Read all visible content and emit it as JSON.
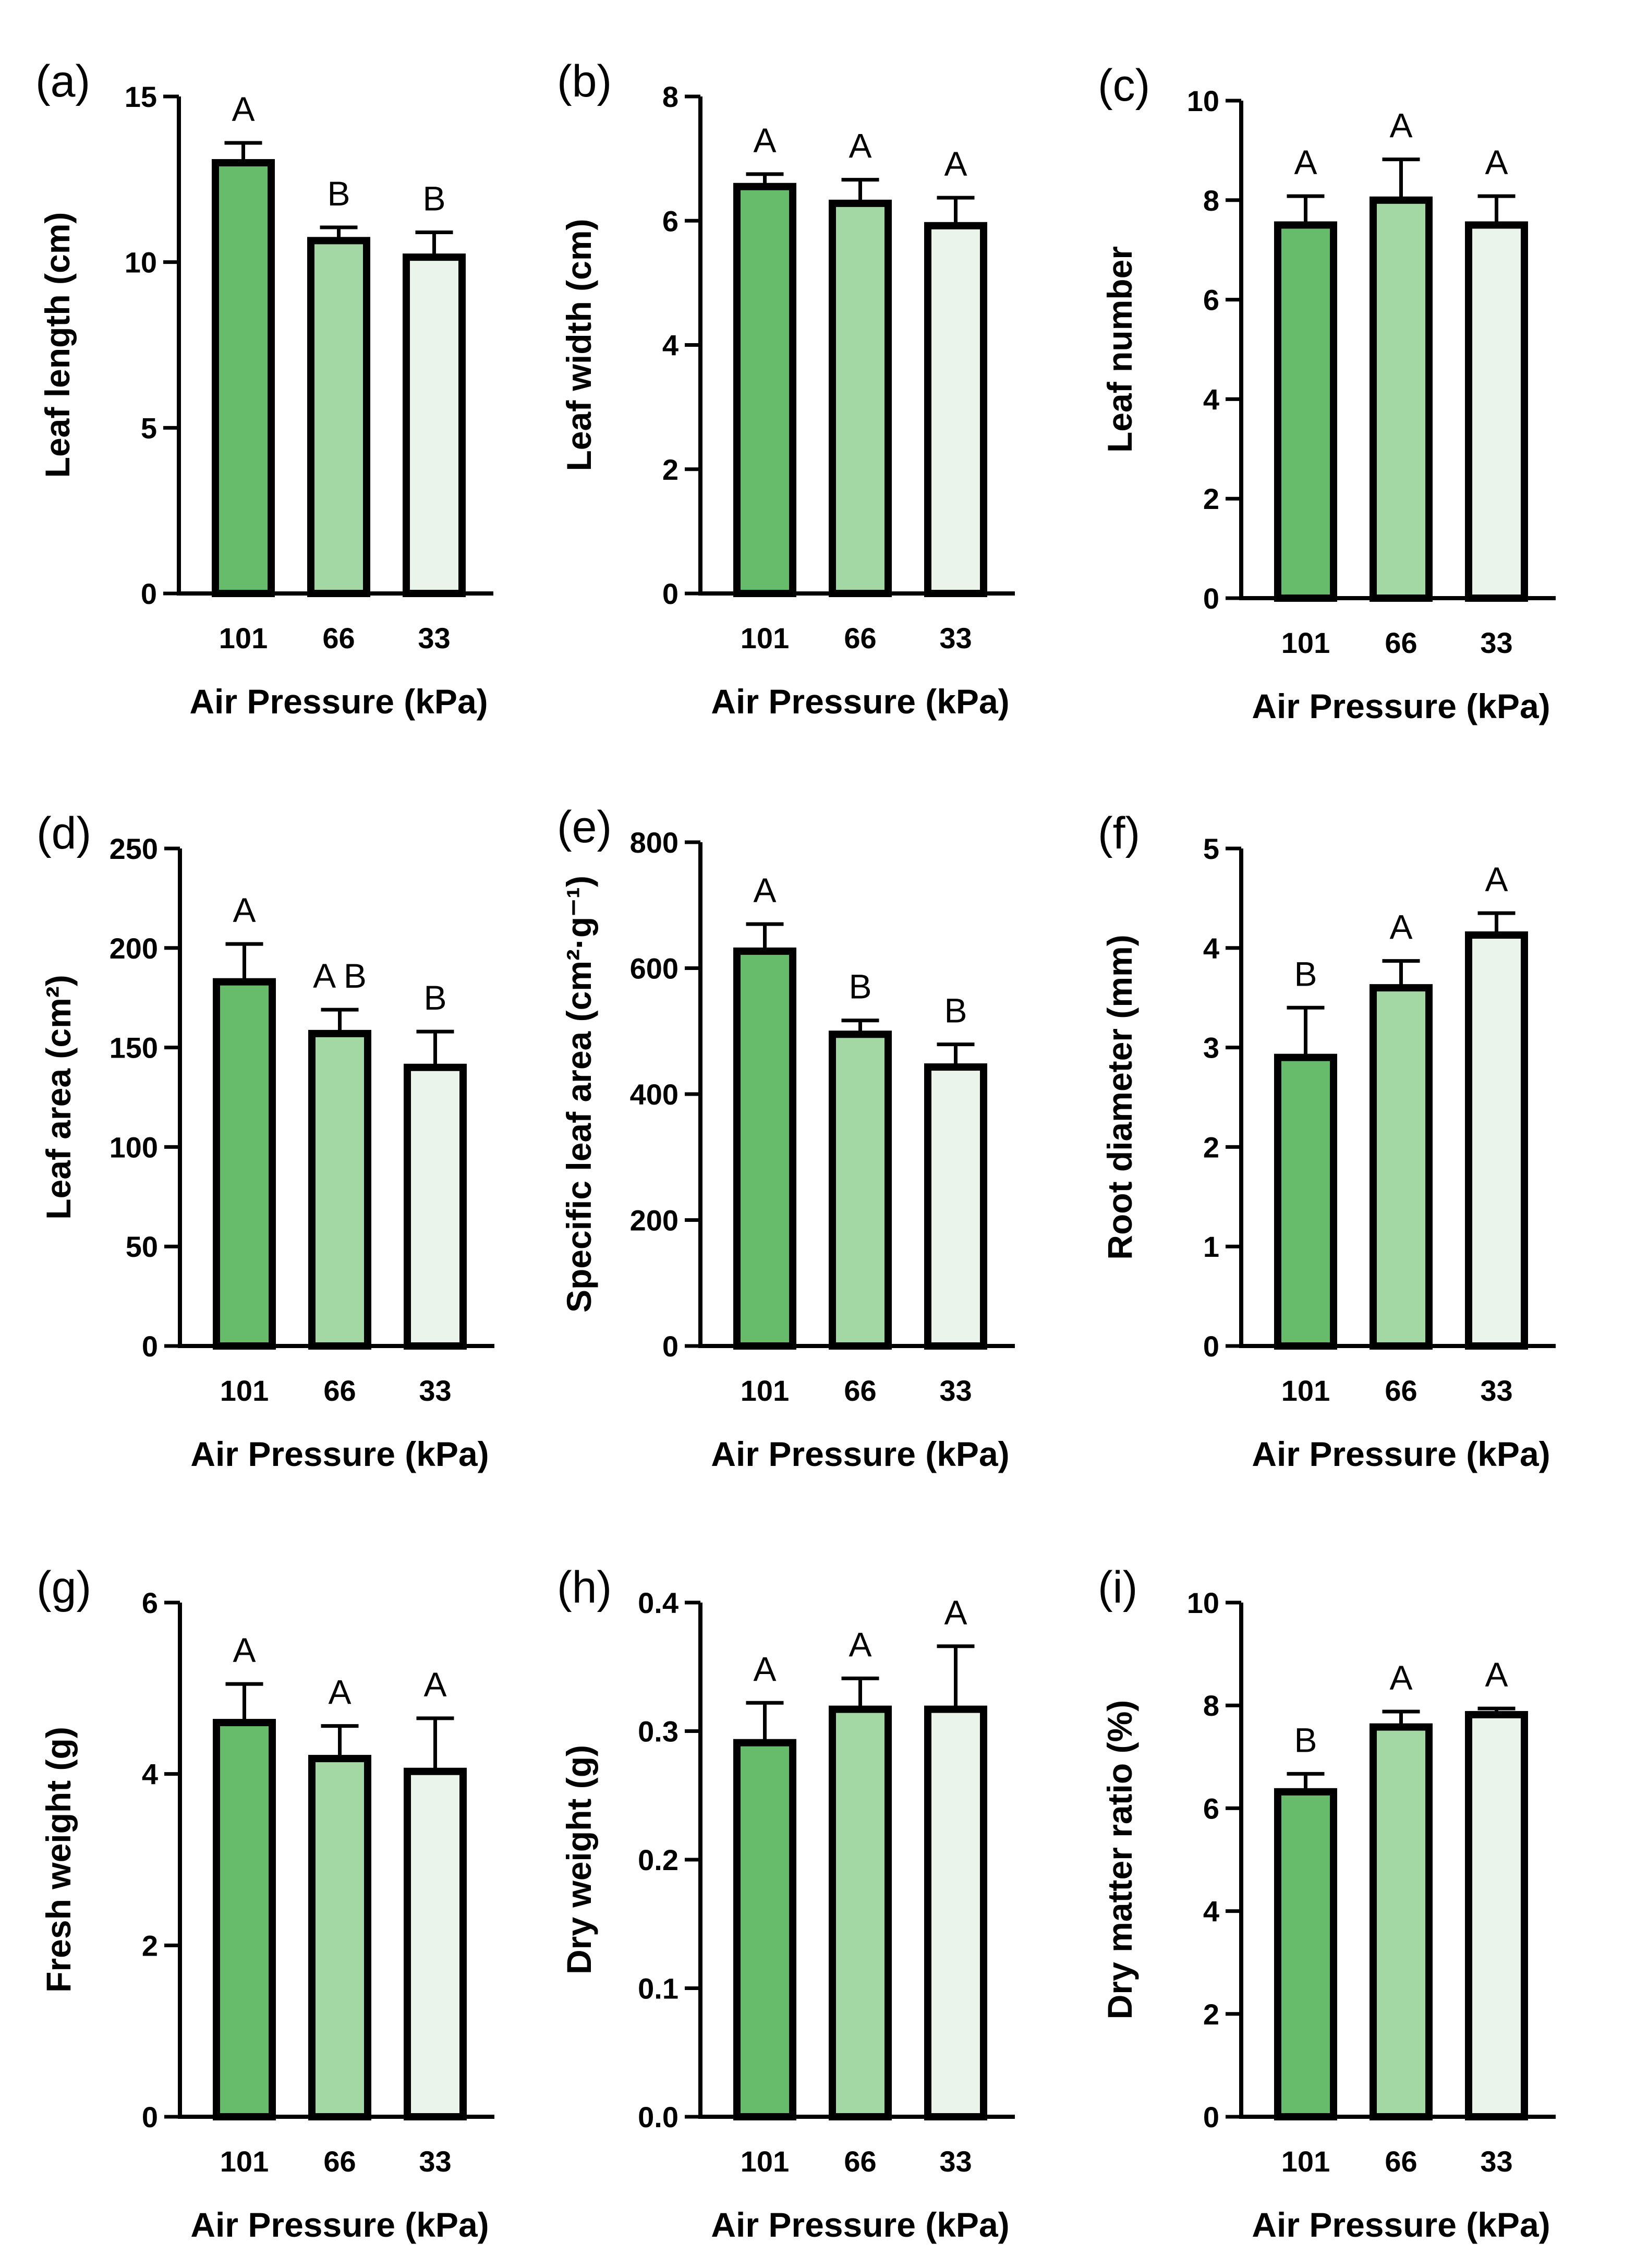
{
  "colors": {
    "bar_101": "#67bc6c",
    "bar_66": "#a3d7a3",
    "bar_33": "#eaf4ea",
    "stroke": "#000000"
  },
  "chart_data": [
    {
      "type": "bar",
      "panel": "(a)",
      "categories": [
        "101",
        "66",
        "33"
      ],
      "values": [
        13.0,
        10.65,
        10.15
      ],
      "errors": [
        0.6,
        0.4,
        0.75
      ],
      "letters": [
        "A",
        "B",
        "B"
      ],
      "xlabel": "Air Pressure (kPa)",
      "ylabel": "Leaf length (cm)",
      "ylim": [
        0,
        15
      ],
      "yticks": [
        "0",
        "5",
        "10",
        "15"
      ]
    },
    {
      "type": "bar",
      "panel": "(b)",
      "categories": [
        "101",
        "66",
        "33"
      ],
      "values": [
        6.55,
        6.28,
        5.92
      ],
      "errors": [
        0.2,
        0.38,
        0.45
      ],
      "letters": [
        "A",
        "A",
        "A"
      ],
      "xlabel": "Air Pressure (kPa)",
      "ylabel": "Leaf width (cm)",
      "ylim": [
        0,
        8
      ],
      "yticks": [
        "0",
        "2",
        "4",
        "6",
        "8"
      ]
    },
    {
      "type": "bar",
      "panel": "(c)",
      "categories": [
        "101",
        "66",
        "33"
      ],
      "values": [
        7.5,
        8.0,
        7.5
      ],
      "errors": [
        0.58,
        0.82,
        0.58
      ],
      "letters": [
        "A",
        "A",
        "A"
      ],
      "xlabel": "Air Pressure (kPa)",
      "ylabel": "Leaf number",
      "ylim": [
        0,
        10
      ],
      "yticks": [
        "0",
        "2",
        "4",
        "6",
        "8",
        "10"
      ]
    },
    {
      "type": "bar",
      "panel": "(d)",
      "categories": [
        "101",
        "66",
        "33"
      ],
      "values": [
        183,
        157,
        140
      ],
      "errors": [
        19,
        12,
        18
      ],
      "letters": [
        "A",
        "A B",
        "B"
      ],
      "xlabel": "Air Pressure (kPa)",
      "ylabel": "Leaf area (cm²)",
      "ylim": [
        0,
        250
      ],
      "yticks": [
        "0",
        "50",
        "100",
        "150",
        "200",
        "250"
      ]
    },
    {
      "type": "bar",
      "panel": "(e)",
      "categories": [
        "101",
        "66",
        "33"
      ],
      "values": [
        627,
        495,
        443
      ],
      "errors": [
        43,
        22,
        36
      ],
      "letters": [
        "A",
        "B",
        "B"
      ],
      "xlabel": "Air Pressure (kPa)",
      "ylabel": "Specific leaf area (cm²·g⁻¹)",
      "ylim": [
        0,
        800
      ],
      "yticks": [
        "0",
        "200",
        "400",
        "600",
        "800"
      ]
    },
    {
      "type": "bar",
      "panel": "(f)",
      "categories": [
        "101",
        "66",
        "33"
      ],
      "values": [
        2.9,
        3.6,
        4.13
      ],
      "errors": [
        0.5,
        0.27,
        0.22
      ],
      "letters": [
        "B",
        "A",
        "A"
      ],
      "xlabel": "Air Pressure (kPa)",
      "ylabel": "Root diameter (mm)",
      "ylim": [
        0,
        5
      ],
      "yticks": [
        "0",
        "1",
        "2",
        "3",
        "4",
        "5"
      ]
    },
    {
      "type": "bar",
      "panel": "(g)",
      "categories": [
        "101",
        "66",
        "33"
      ],
      "values": [
        4.6,
        4.18,
        4.03
      ],
      "errors": [
        0.45,
        0.38,
        0.62
      ],
      "letters": [
        "A",
        "A",
        "A"
      ],
      "xlabel": "Air Pressure (kPa)",
      "ylabel": "Fresh weight (g)",
      "ylim": [
        0,
        6
      ],
      "yticks": [
        "0",
        "2",
        "4",
        "6"
      ]
    },
    {
      "type": "bar",
      "panel": "(h)",
      "categories": [
        "101",
        "66",
        "33"
      ],
      "values": [
        0.291,
        0.317,
        0.317
      ],
      "errors": [
        0.031,
        0.024,
        0.049
      ],
      "letters": [
        "A",
        "A",
        "A"
      ],
      "xlabel": "Air Pressure (kPa)",
      "ylabel": "Dry weight (g)",
      "ylim": [
        0,
        0.4
      ],
      "yticks": [
        "0.0",
        "0.1",
        "0.2",
        "0.3",
        "0.4"
      ]
    },
    {
      "type": "bar",
      "panel": "(i)",
      "categories": [
        "101",
        "66",
        "33"
      ],
      "values": [
        6.32,
        7.58,
        7.82
      ],
      "errors": [
        0.35,
        0.3,
        0.12
      ],
      "letters": [
        "B",
        "A",
        "A"
      ],
      "xlabel": "Air Pressure (kPa)",
      "ylabel": "Dry matter ratio (%)",
      "ylim": [
        0,
        10
      ],
      "yticks": [
        "0",
        "2",
        "4",
        "6",
        "8",
        "10"
      ]
    }
  ]
}
